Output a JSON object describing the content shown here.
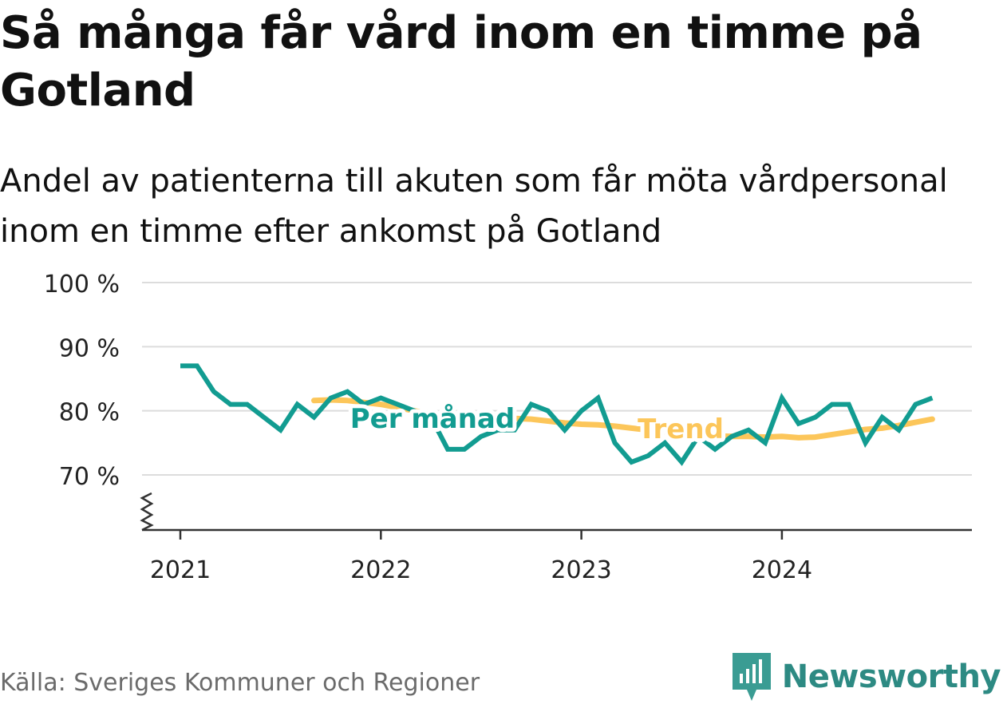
{
  "header": {
    "title": "Så många får vård inom en timme på Gotland",
    "subtitle": "Andel av patienterna till akuten som får möta vårdpersonal inom en timme efter ankomst på Gotland"
  },
  "footer": {
    "source": "Källa: Sveriges Kommuner och Regioner",
    "brand": "Newsworthy",
    "brand_icon": "newsworthy-logo-icon"
  },
  "colors": {
    "monthly": "#129c91",
    "trend": "#fcc65a",
    "grid": "#dcdcdc",
    "axis": "#333333",
    "brand": "#2d8a83"
  },
  "chart_data": {
    "type": "line",
    "x_unit": "month",
    "ylim": [
      70,
      100
    ],
    "y_ticks": [
      70,
      80,
      90,
      100
    ],
    "y_tick_labels": [
      "70 %",
      "80 %",
      "90 %",
      "100 %"
    ],
    "y_axis_break": true,
    "x_tick_labels": [
      "2021",
      "2022",
      "2023",
      "2024"
    ],
    "grid": true,
    "series": [
      {
        "name": "Per månad",
        "x": [
          "2021-01",
          "2021-02",
          "2021-03",
          "2021-04",
          "2021-05",
          "2021-06",
          "2021-07",
          "2021-08",
          "2021-09",
          "2021-10",
          "2021-11",
          "2021-12",
          "2022-01",
          "2022-02",
          "2022-03",
          "2022-04",
          "2022-05",
          "2022-06",
          "2022-07",
          "2022-08",
          "2022-09",
          "2022-10",
          "2022-11",
          "2022-12",
          "2023-01",
          "2023-02",
          "2023-03",
          "2023-04",
          "2023-05",
          "2023-06",
          "2023-07",
          "2023-08",
          "2023-09",
          "2023-10",
          "2023-11",
          "2023-12",
          "2024-01",
          "2024-02",
          "2024-03",
          "2024-04",
          "2024-05",
          "2024-06",
          "2024-07",
          "2024-08",
          "2024-09",
          "2024-10"
        ],
        "values": [
          87,
          87,
          83,
          81,
          81,
          79,
          77,
          81,
          79,
          82,
          83,
          81,
          82,
          81,
          80,
          79,
          74,
          74,
          76,
          77,
          77,
          81,
          80,
          77,
          80,
          82,
          75,
          72,
          73,
          75,
          72,
          76,
          74,
          76,
          77,
          75,
          82,
          78,
          79,
          81,
          81,
          75,
          79,
          77,
          81,
          82
        ]
      },
      {
        "name": "Trend",
        "x": [
          "2021-09",
          "2021-10",
          "2021-11",
          "2021-12",
          "2022-01",
          "2022-02",
          "2022-03",
          "2022-04",
          "2022-05",
          "2022-06",
          "2022-07",
          "2022-08",
          "2022-09",
          "2022-10",
          "2022-11",
          "2022-12",
          "2023-01",
          "2023-02",
          "2023-03",
          "2023-04",
          "2023-05",
          "2023-06",
          "2023-07",
          "2023-08",
          "2023-09",
          "2023-10",
          "2023-11",
          "2023-12",
          "2024-01",
          "2024-02",
          "2024-03",
          "2024-04",
          "2024-05",
          "2024-06",
          "2024-07",
          "2024-08",
          "2024-09",
          "2024-10"
        ],
        "values": [
          81.6,
          81.7,
          81.6,
          81.3,
          81.0,
          80.5,
          80.0,
          79.5,
          79.1,
          78.9,
          78.8,
          78.8,
          78.8,
          78.7,
          78.4,
          78.1,
          77.9,
          77.8,
          77.6,
          77.3,
          77.0,
          76.7,
          76.4,
          76.2,
          76.1,
          76.0,
          76.0,
          75.9,
          76.0,
          75.8,
          75.9,
          76.3,
          76.7,
          77.1,
          77.3,
          77.7,
          78.2,
          78.7
        ]
      }
    ]
  }
}
